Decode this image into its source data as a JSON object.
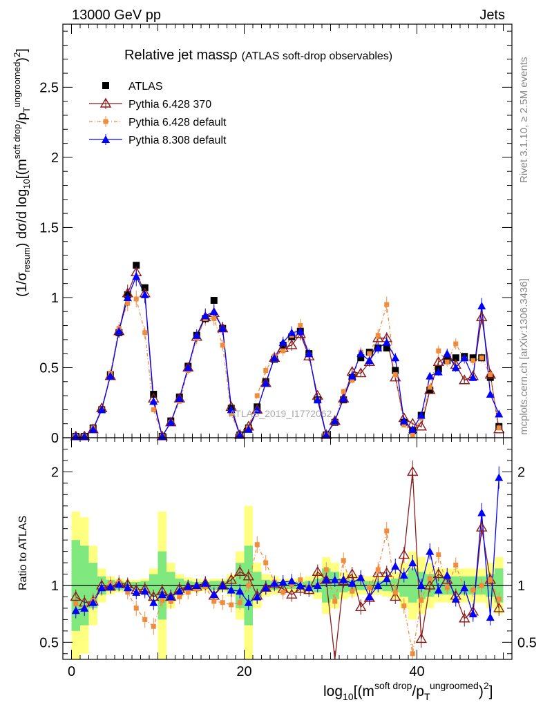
{
  "header": {
    "process": "13000 GeV pp",
    "category": "Jets"
  },
  "side": {
    "rivet": "Rivet 3.1.10, ≥ 2.5M events",
    "mcplots": "mcplots.cern.ch [arXiv:1306.3436]"
  },
  "watermark": "ATLAS_2019_I1772062",
  "chart_data": {
    "type": "scatter",
    "title": "Relative jet massρ",
    "subtitle": "(ATLAS soft-drop observables)",
    "xlabel": "log10[(m^soft drop/pT^ungroomed)^2]",
    "ylabel": "(1/σresum) dσ/d log10[(m^soft drop/pT^ungroomed)^2]",
    "ratio_ylabel": "Ratio to ATLAS",
    "xlim": [
      -1,
      51
    ],
    "ylim": [
      0,
      2.95
    ],
    "ratio_ylim": [
      0.35,
      2.3
    ],
    "x_ticks": [
      0,
      20,
      40
    ],
    "y_ticks": [
      0,
      0.5,
      1,
      1.5,
      2,
      2.5
    ],
    "ratio_ticks": [
      0.5,
      1,
      2
    ],
    "x": [
      0.5,
      1.5,
      2.5,
      3.5,
      4.5,
      5.5,
      6.5,
      7.5,
      8.5,
      9.5,
      10.5,
      11.5,
      12.5,
      13.5,
      14.5,
      15.5,
      16.5,
      17.5,
      18.5,
      19.5,
      20.5,
      21.5,
      22.5,
      23.5,
      24.5,
      25.5,
      26.5,
      27.5,
      28.5,
      29.5,
      30.5,
      31.5,
      32.5,
      33.5,
      34.5,
      35.5,
      36.5,
      37.5,
      38.5,
      39.5,
      40.5,
      41.5,
      42.5,
      43.5,
      44.5,
      45.5,
      46.5,
      47.5,
      48.5,
      49.5
    ],
    "series": [
      {
        "name": "ATLAS",
        "color": "#000000",
        "marker": "square",
        "values": [
          0.01,
          0.01,
          0.07,
          0.2,
          0.45,
          0.75,
          1.02,
          1.23,
          1.07,
          0.31,
          0.01,
          0.12,
          0.29,
          0.51,
          0.73,
          0.85,
          0.98,
          0.78,
          0.21,
          0.02,
          0.07,
          0.22,
          0.4,
          0.56,
          0.66,
          0.72,
          0.76,
          0.6,
          0.27,
          0.02,
          0.11,
          0.27,
          0.43,
          0.57,
          0.61,
          0.64,
          0.64,
          0.48,
          0.11,
          0.05,
          0.16,
          0.34,
          0.49,
          0.55,
          0.57,
          0.58,
          0.57,
          0.57,
          0.43,
          0.08
        ],
        "ratio": [
          1,
          1,
          1,
          1,
          1,
          1,
          1,
          1,
          1,
          1,
          1,
          1,
          1,
          1,
          1,
          1,
          1,
          1,
          1,
          1,
          1,
          1,
          1,
          1,
          1,
          1,
          1,
          1,
          1,
          1,
          1,
          1,
          1,
          1,
          1,
          1,
          1,
          1,
          1,
          1,
          1,
          1,
          1,
          1,
          1,
          1,
          1,
          1,
          1,
          1
        ]
      },
      {
        "name": "Pythia 6.428 370",
        "color": "#8b1a1a",
        "marker": "open-triangle",
        "values": [
          0.01,
          0.01,
          0.06,
          0.21,
          0.44,
          0.76,
          1.03,
          1.18,
          1.03,
          0.28,
          0.01,
          0.11,
          0.28,
          0.5,
          0.72,
          0.86,
          0.89,
          0.78,
          0.22,
          0.02,
          0.08,
          0.2,
          0.39,
          0.57,
          0.64,
          0.66,
          0.74,
          0.58,
          0.3,
          0.02,
          0.12,
          0.28,
          0.47,
          0.46,
          0.54,
          0.71,
          0.71,
          0.43,
          0.14,
          0.1,
          0.08,
          0.34,
          0.54,
          0.58,
          0.52,
          0.41,
          0.44,
          0.86,
          0.45,
          0.06
        ],
        "ratio": [
          0.9,
          0.85,
          0.86,
          1.0,
          0.99,
          1.02,
          1.01,
          0.96,
          0.97,
          0.9,
          0.95,
          0.9,
          0.97,
          0.99,
          0.99,
          1.02,
          0.91,
          1.0,
          1.05,
          1.12,
          1.08,
          0.91,
          0.98,
          1.01,
          0.97,
          0.92,
          0.97,
          0.96,
          1.12,
          1.05,
          0.34,
          1.04,
          1.1,
          0.81,
          0.89,
          1.11,
          1.11,
          0.9,
          1.27,
          2.0,
          0.53,
          1.0,
          1.1,
          1.05,
          0.91,
          0.71,
          0.77,
          1.51,
          1.05,
          0.8
        ]
      },
      {
        "name": "Pythia 6.428 default",
        "color": "#f08c3c",
        "marker": "square",
        "values": [
          0.01,
          0.01,
          0.07,
          0.2,
          0.46,
          0.78,
          0.96,
          0.99,
          0.75,
          0.2,
          0.01,
          0.11,
          0.26,
          0.48,
          0.71,
          0.85,
          0.85,
          0.66,
          0.17,
          0.02,
          0.07,
          0.3,
          0.48,
          0.58,
          0.62,
          0.73,
          0.8,
          0.59,
          0.27,
          0.02,
          0.11,
          0.33,
          0.41,
          0.61,
          0.6,
          0.73,
          0.95,
          0.45,
          0.09,
          0.02,
          0.14,
          0.36,
          0.62,
          0.54,
          0.67,
          0.56,
          0.55,
          0.57,
          0.45,
          0.07
        ],
        "ratio": [
          0.84,
          0.8,
          0.87,
          0.97,
          1.02,
          1.03,
          0.94,
          0.8,
          0.7,
          0.64,
          0.87,
          0.86,
          0.9,
          0.94,
          0.97,
          0.99,
          0.86,
          0.85,
          0.83,
          0.85,
          1.0,
          1.36,
          1.2,
          1.03,
          0.94,
          1.01,
          1.05,
          0.98,
          1.0,
          1.14,
          0.86,
          1.22,
          0.95,
          1.07,
          0.98,
          1.14,
          1.48,
          0.94,
          0.82,
          0.4,
          0.87,
          1.06,
          1.27,
          0.98,
          1.18,
          0.97,
          0.96,
          1.0,
          1.05,
          0.88
        ]
      },
      {
        "name": "Pythia 8.308 default",
        "color": "#0000ff",
        "marker": "triangle",
        "values": [
          0.01,
          0.01,
          0.06,
          0.2,
          0.44,
          0.76,
          1.0,
          1.15,
          1.02,
          0.26,
          0.01,
          0.11,
          0.28,
          0.5,
          0.73,
          0.87,
          0.9,
          0.78,
          0.2,
          0.02,
          0.06,
          0.2,
          0.39,
          0.57,
          0.68,
          0.75,
          0.76,
          0.6,
          0.27,
          0.02,
          0.12,
          0.28,
          0.44,
          0.6,
          0.55,
          0.64,
          0.68,
          0.57,
          0.12,
          0.06,
          0.16,
          0.44,
          0.47,
          0.6,
          0.5,
          0.57,
          0.43,
          0.94,
          0.31,
          0.17
        ],
        "ratio": [
          0.78,
          0.8,
          0.85,
          0.98,
          0.99,
          1.01,
          0.98,
          0.94,
          0.95,
          0.85,
          0.92,
          0.9,
          0.95,
          0.99,
          1.0,
          1.02,
          0.92,
          1.0,
          0.96,
          0.95,
          0.85,
          0.9,
          0.98,
          1.02,
          1.03,
          1.04,
          1.0,
          0.98,
          1.0,
          1.05,
          1.05,
          1.05,
          1.02,
          1.07,
          0.9,
          1.0,
          1.06,
          1.17,
          1.09,
          1.2,
          1.0,
          1.3,
          0.96,
          1.09,
          0.88,
          0.98,
          0.75,
          1.64,
          0.72,
          1.95
        ]
      }
    ],
    "bands": {
      "inner_color": "#7fe87f",
      "outer_color": "#ffff80",
      "inner_halfwidth": [
        0.4,
        0.35,
        0.2,
        0.08,
        0.05,
        0.04,
        0.03,
        0.03,
        0.04,
        0.1,
        0.3,
        0.12,
        0.06,
        0.04,
        0.03,
        0.03,
        0.04,
        0.04,
        0.06,
        0.2,
        0.35,
        0.12,
        0.05,
        0.04,
        0.03,
        0.03,
        0.03,
        0.04,
        0.06,
        0.15,
        0.12,
        0.06,
        0.05,
        0.04,
        0.04,
        0.04,
        0.05,
        0.06,
        0.1,
        0.15,
        0.12,
        0.1,
        0.08,
        0.08,
        0.08,
        0.08,
        0.08,
        0.08,
        0.1,
        0.15
      ],
      "outer_halfwidth": [
        0.65,
        0.6,
        0.35,
        0.15,
        0.08,
        0.06,
        0.05,
        0.05,
        0.06,
        0.15,
        0.65,
        0.2,
        0.1,
        0.07,
        0.06,
        0.05,
        0.06,
        0.06,
        0.1,
        0.3,
        0.7,
        0.2,
        0.1,
        0.08,
        0.06,
        0.06,
        0.06,
        0.08,
        0.12,
        0.25,
        0.2,
        0.12,
        0.1,
        0.08,
        0.08,
        0.08,
        0.1,
        0.12,
        0.2,
        0.3,
        0.25,
        0.2,
        0.15,
        0.15,
        0.15,
        0.15,
        0.15,
        0.15,
        0.2,
        0.25
      ]
    }
  }
}
